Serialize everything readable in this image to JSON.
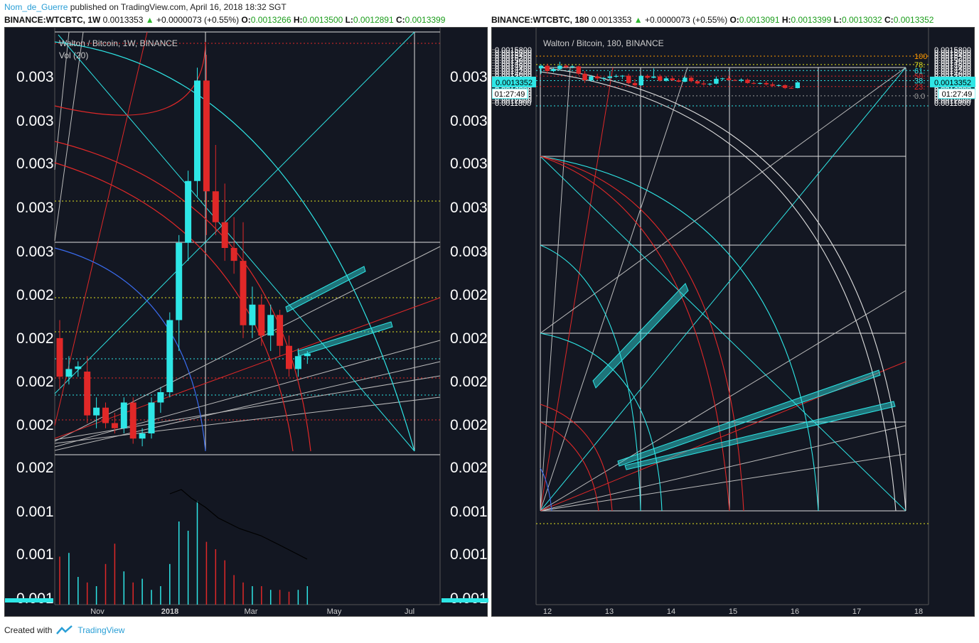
{
  "header": {
    "author": "Nom_de_Guerre",
    "published": "published on TradingView.com, April 16, 2018 18:32 SGT"
  },
  "left": {
    "symbol": "BINANCE:WTCBTC, 1W",
    "price": "0.0013353",
    "change": "+0.0000073 (+0.55%)",
    "o": "0.0013266",
    "h": "0.0013500",
    "l": "0.0012891",
    "c": "0.0013399",
    "legend_title": "Walton / Bitcoin, 1W, BINANCE",
    "vol_label": "Vol (20)"
  },
  "right": {
    "symbol": "BINANCE:WTCBTC, 180",
    "price": "0.0013353",
    "change": "+0.0000073 (+0.55%)",
    "o": "0.0013091",
    "h": "0.0013399",
    "l": "0.0013032",
    "c": "0.0013352",
    "legend_title": "Walton / Bitcoin, 180, BINANCE",
    "price_tag": "0.0013352",
    "timer_tag": "01:27:49"
  },
  "labels": {
    "o": "O:",
    "h": "H:",
    "l": "L:",
    "c": "C:",
    "up_arrow": "▲"
  },
  "footer": {
    "created_with": "Created with",
    "brand": "TradingView"
  },
  "chart_data": [
    {
      "type": "candlestick",
      "name_shown": "Walton / Bitcoin, 1W, BINANCE",
      "x_tick_labels": [
        "Nov",
        "2018",
        "Mar",
        "May",
        "Jul"
      ],
      "y_tick_labels_left": [
        "0.003",
        "0.003",
        "0.003",
        "0.003",
        "0.003",
        "0.002",
        "0.002",
        "0.002",
        "0.002",
        "0.002",
        "0.001",
        "0.001",
        "0.001"
      ],
      "y_tick_labels_right": [
        "0.003",
        "0.003",
        "0.003",
        "0.003",
        "0.003",
        "0.002",
        "0.002",
        "0.002",
        "0.002",
        "0.002",
        "0.001",
        "0.001",
        "0.001"
      ],
      "candles": [
        {
          "o": 0.00215,
          "h": 0.00222,
          "l": 0.00195,
          "c": 0.002
        },
        {
          "o": 0.002,
          "h": 0.00208,
          "l": 0.00197,
          "c": 0.00203
        },
        {
          "o": 0.00203,
          "h": 0.00206,
          "l": 0.002,
          "c": 0.00204
        },
        {
          "o": 0.00202,
          "h": 0.00208,
          "l": 0.00182,
          "c": 0.00185
        },
        {
          "o": 0.00185,
          "h": 0.00192,
          "l": 0.0018,
          "c": 0.00188
        },
        {
          "o": 0.00188,
          "h": 0.0019,
          "l": 0.0018,
          "c": 0.00182
        },
        {
          "o": 0.00182,
          "h": 0.00186,
          "l": 0.00178,
          "c": 0.0018
        },
        {
          "o": 0.0018,
          "h": 0.00192,
          "l": 0.00178,
          "c": 0.0019
        },
        {
          "o": 0.0019,
          "h": 0.00192,
          "l": 0.00174,
          "c": 0.00176
        },
        {
          "o": 0.00176,
          "h": 0.0018,
          "l": 0.00173,
          "c": 0.00178
        },
        {
          "o": 0.00178,
          "h": 0.00192,
          "l": 0.00176,
          "c": 0.0019
        },
        {
          "o": 0.0019,
          "h": 0.00196,
          "l": 0.00186,
          "c": 0.00194
        },
        {
          "o": 0.00194,
          "h": 0.00225,
          "l": 0.00192,
          "c": 0.00222
        },
        {
          "o": 0.00222,
          "h": 0.00255,
          "l": 0.0021,
          "c": 0.00252
        },
        {
          "o": 0.00252,
          "h": 0.0028,
          "l": 0.00245,
          "c": 0.00276
        },
        {
          "o": 0.00276,
          "h": 0.0032,
          "l": 0.0027,
          "c": 0.00315
        },
        {
          "o": 0.00315,
          "h": 0.00325,
          "l": 0.00255,
          "c": 0.00272
        },
        {
          "o": 0.00272,
          "h": 0.0029,
          "l": 0.00255,
          "c": 0.0026
        },
        {
          "o": 0.0026,
          "h": 0.00275,
          "l": 0.00245,
          "c": 0.0025
        },
        {
          "o": 0.0025,
          "h": 0.00262,
          "l": 0.0024,
          "c": 0.00245
        },
        {
          "o": 0.00245,
          "h": 0.0026,
          "l": 0.00215,
          "c": 0.0022
        },
        {
          "o": 0.0022,
          "h": 0.00235,
          "l": 0.00215,
          "c": 0.00228
        },
        {
          "o": 0.00228,
          "h": 0.00232,
          "l": 0.00212,
          "c": 0.00216
        },
        {
          "o": 0.00216,
          "h": 0.00228,
          "l": 0.0021,
          "c": 0.00224
        },
        {
          "o": 0.00224,
          "h": 0.00226,
          "l": 0.00208,
          "c": 0.00212
        },
        {
          "o": 0.00212,
          "h": 0.00216,
          "l": 0.002,
          "c": 0.00203
        },
        {
          "o": 0.00203,
          "h": 0.00211,
          "l": 0.002,
          "c": 0.00208
        },
        {
          "o": 0.00208,
          "h": 0.0021,
          "l": 0.00205,
          "c": 0.00209
        }
      ],
      "volume": [
        0.26,
        0.28,
        0.15,
        0.12,
        0.1,
        0.22,
        0.33,
        0.18,
        0.12,
        0.14,
        0.08,
        0.1,
        0.22,
        0.45,
        0.4,
        0.56,
        0.34,
        0.3,
        0.24,
        0.16,
        0.12,
        0.1,
        0.1,
        0.08,
        0.08,
        0.07,
        0.08,
        0.1
      ],
      "colors": {
        "up": "#2ee6e6",
        "down": "#e02828",
        "bg": "#131722"
      }
    },
    {
      "type": "candlestick",
      "name_shown": "Walton / Bitcoin, 180, BINANCE",
      "x_tick_labels": [
        "12",
        "13",
        "14",
        "15",
        "16",
        "17",
        "18"
      ],
      "y_tick_labels": [
        "0.0015800",
        "0.0015600",
        "0.0015400",
        "0.0015200",
        "0.0015000",
        "0.0014800",
        "0.0014600",
        "0.0014400",
        "0.0014200",
        "0.0014000",
        "0.0013800",
        "0.0013600",
        "0.0013400",
        "0.0013200",
        "0.0013000",
        "0.0012800",
        "0.0012600",
        "0.0012400",
        "0.0012200",
        "0.0012000",
        "0.0011800"
      ],
      "ylim": [
        0.00117,
        0.00159
      ],
      "fib_labels": [
        "100",
        "78.",
        "61.",
        "50.",
        "38.",
        "23.",
        "0.0"
      ],
      "fib_levels": [
        0.001532,
        0.001469,
        0.001424,
        0.001382,
        0.001348,
        0.001304,
        0.001234
      ],
      "candles": [
        {
          "o": 0.00144,
          "h": 0.00147,
          "l": 0.0014,
          "c": 0.00146
        },
        {
          "o": 0.00146,
          "h": 0.001475,
          "l": 0.0014,
          "c": 0.00142
        },
        {
          "o": 0.00142,
          "h": 0.00145,
          "l": 0.00141,
          "c": 0.001435
        },
        {
          "o": 0.001435,
          "h": 0.00149,
          "l": 0.001425,
          "c": 0.00146
        },
        {
          "o": 0.00146,
          "h": 0.00147,
          "l": 0.00144,
          "c": 0.00145
        },
        {
          "o": 0.00145,
          "h": 0.001465,
          "l": 0.00144,
          "c": 0.001455
        },
        {
          "o": 0.001455,
          "h": 0.00146,
          "l": 0.00139,
          "c": 0.0014
        },
        {
          "o": 0.0014,
          "h": 0.00142,
          "l": 0.00133,
          "c": 0.00135
        },
        {
          "o": 0.00135,
          "h": 0.00139,
          "l": 0.00134,
          "c": 0.00138
        },
        {
          "o": 0.00138,
          "h": 0.0014,
          "l": 0.00135,
          "c": 0.001365
        },
        {
          "o": 0.001365,
          "h": 0.001375,
          "l": 0.00135,
          "c": 0.001368
        },
        {
          "o": 0.001368,
          "h": 0.00142,
          "l": 0.001355,
          "c": 0.00138
        },
        {
          "o": 0.00138,
          "h": 0.001395,
          "l": 0.00137,
          "c": 0.001383
        },
        {
          "o": 0.001383,
          "h": 0.00139,
          "l": 0.00136,
          "c": 0.001385
        },
        {
          "o": 0.001385,
          "h": 0.0014,
          "l": 0.00132,
          "c": 0.00133
        },
        {
          "o": 0.00133,
          "h": 0.00136,
          "l": 0.001305,
          "c": 0.001313
        },
        {
          "o": 0.001313,
          "h": 0.00139,
          "l": 0.00131,
          "c": 0.001384
        },
        {
          "o": 0.001384,
          "h": 0.001395,
          "l": 0.00136,
          "c": 0.00137
        },
        {
          "o": 0.00137,
          "h": 0.00144,
          "l": 0.001365,
          "c": 0.001379
        },
        {
          "o": 0.001379,
          "h": 0.001395,
          "l": 0.00134,
          "c": 0.001348
        },
        {
          "o": 0.001348,
          "h": 0.00138,
          "l": 0.00134,
          "c": 0.001365
        },
        {
          "o": 0.001365,
          "h": 0.00138,
          "l": 0.001345,
          "c": 0.00135
        },
        {
          "o": 0.00135,
          "h": 0.001365,
          "l": 0.001335,
          "c": 0.00134
        },
        {
          "o": 0.00134,
          "h": 0.00138,
          "l": 0.001335,
          "c": 0.00137
        },
        {
          "o": 0.00137,
          "h": 0.001385,
          "l": 0.001335,
          "c": 0.001344
        },
        {
          "o": 0.001344,
          "h": 0.001355,
          "l": 0.00132,
          "c": 0.001327
        },
        {
          "o": 0.001327,
          "h": 0.001345,
          "l": 0.00131,
          "c": 0.00132
        },
        {
          "o": 0.00132,
          "h": 0.00133,
          "l": 0.00131,
          "c": 0.001325
        },
        {
          "o": 0.001325,
          "h": 0.00138,
          "l": 0.00132,
          "c": 0.001362
        },
        {
          "o": 0.001362,
          "h": 0.00137,
          "l": 0.00135,
          "c": 0.001365
        },
        {
          "o": 0.001365,
          "h": 0.00138,
          "l": 0.001345,
          "c": 0.001352
        },
        {
          "o": 0.001352,
          "h": 0.00136,
          "l": 0.001345,
          "c": 0.001348
        },
        {
          "o": 0.001348,
          "h": 0.001365,
          "l": 0.001335,
          "c": 0.001355
        },
        {
          "o": 0.001355,
          "h": 0.001365,
          "l": 0.001325,
          "c": 0.00133
        },
        {
          "o": 0.00133,
          "h": 0.00134,
          "l": 0.00132,
          "c": 0.001325
        },
        {
          "o": 0.001325,
          "h": 0.001335,
          "l": 0.00132,
          "c": 0.00133
        },
        {
          "o": 0.00133,
          "h": 0.001345,
          "l": 0.00131,
          "c": 0.00132
        },
        {
          "o": 0.00132,
          "h": 0.001335,
          "l": 0.0013,
          "c": 0.00131
        },
        {
          "o": 0.00131,
          "h": 0.00132,
          "l": 0.001305,
          "c": 0.001314
        },
        {
          "o": 0.001314,
          "h": 0.00132,
          "l": 0.001285,
          "c": 0.001293
        },
        {
          "o": 0.001293,
          "h": 0.001305,
          "l": 0.001288,
          "c": 0.001292
        },
        {
          "o": 0.001292,
          "h": 0.001345,
          "l": 0.00129,
          "c": 0.001335
        }
      ],
      "colors": {
        "up": "#2ee6e6",
        "down": "#e02828",
        "bg": "#131722"
      }
    }
  ]
}
